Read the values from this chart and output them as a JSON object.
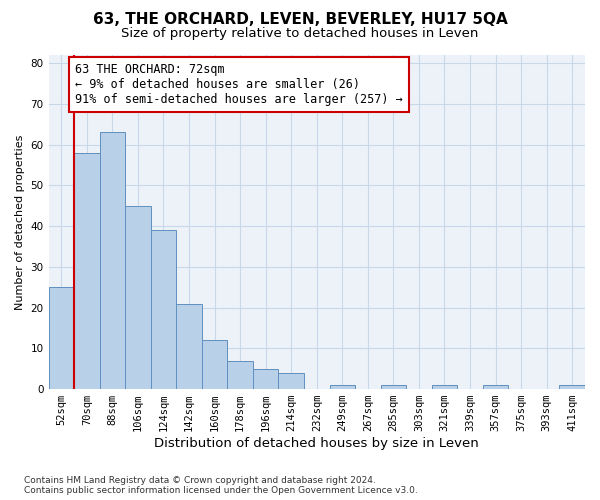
{
  "title": "63, THE ORCHARD, LEVEN, BEVERLEY, HU17 5QA",
  "subtitle": "Size of property relative to detached houses in Leven",
  "xlabel": "Distribution of detached houses by size in Leven",
  "ylabel": "Number of detached properties",
  "bar_labels": [
    "52sqm",
    "70sqm",
    "88sqm",
    "106sqm",
    "124sqm",
    "142sqm",
    "160sqm",
    "178sqm",
    "196sqm",
    "214sqm",
    "232sqm",
    "249sqm",
    "267sqm",
    "285sqm",
    "303sqm",
    "321sqm",
    "339sqm",
    "357sqm",
    "375sqm",
    "393sqm",
    "411sqm"
  ],
  "bar_values": [
    25,
    58,
    63,
    45,
    39,
    21,
    12,
    7,
    5,
    4,
    0,
    1,
    0,
    1,
    0,
    1,
    0,
    1,
    0,
    0,
    1
  ],
  "bar_color": "#b8d0e8",
  "bar_edge_color": "#6090c0",
  "grid_color": "#c8d8e8",
  "background_color": "#edf2f9",
  "vline_color": "#cc0000",
  "annotation_text": "63 THE ORCHARD: 72sqm\n← 9% of detached houses are smaller (26)\n91% of semi-detached houses are larger (257) →",
  "annotation_box_color": "#cc0000",
  "ylim": [
    0,
    82
  ],
  "yticks": [
    0,
    10,
    20,
    30,
    40,
    50,
    60,
    70,
    80
  ],
  "footnote": "Contains HM Land Registry data © Crown copyright and database right 2024.\nContains public sector information licensed under the Open Government Licence v3.0.",
  "title_fontsize": 11,
  "subtitle_fontsize": 9.5,
  "xlabel_fontsize": 9.5,
  "ylabel_fontsize": 8,
  "annotation_fontsize": 8.5,
  "tick_fontsize": 7.5
}
